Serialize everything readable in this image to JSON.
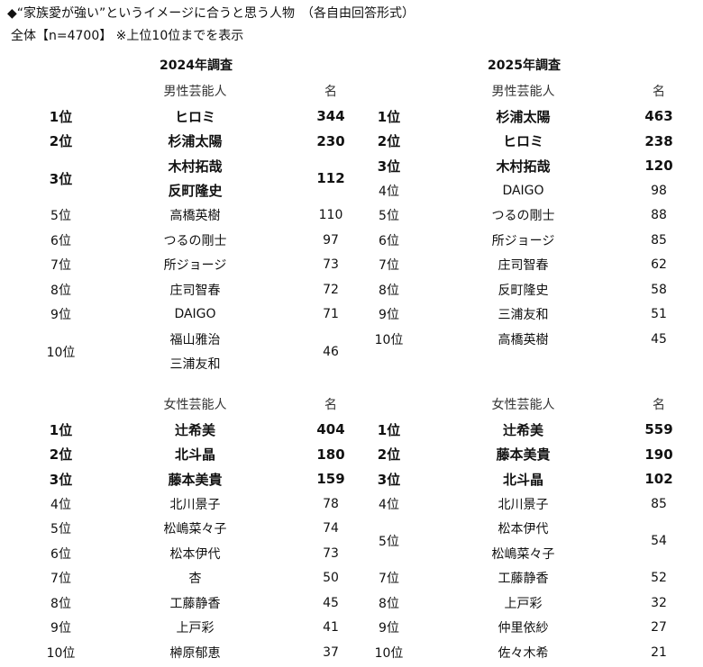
{
  "title": "◆“家族愛が強い”というイメージに合うと思う人物　（各自由回答形式）",
  "subtitle": "全体【n=4700】 ※上位10位までを表示",
  "years": {
    "left": "2024年調査",
    "right": "2025年調査"
  },
  "headers": {
    "male": "男性芸能人",
    "female": "女性芸能人",
    "count": "名"
  },
  "tables": {
    "m2024": [
      {
        "rank": "1位",
        "names": [
          "ヒロミ"
        ],
        "count": "344",
        "bold": true
      },
      {
        "rank": "2位",
        "names": [
          "杉浦太陽"
        ],
        "count": "230",
        "bold": true
      },
      {
        "rank": "3位",
        "names": [
          "木村拓哉",
          "反町隆史"
        ],
        "count": "112",
        "bold": true
      },
      {
        "rank": "5位",
        "names": [
          "高橋英樹"
        ],
        "count": "110"
      },
      {
        "rank": "6位",
        "names": [
          "つるの剛士"
        ],
        "count": "97"
      },
      {
        "rank": "7位",
        "names": [
          "所ジョージ"
        ],
        "count": "73"
      },
      {
        "rank": "8位",
        "names": [
          "庄司智春"
        ],
        "count": "72"
      },
      {
        "rank": "9位",
        "names": [
          "DAIGO"
        ],
        "count": "71"
      },
      {
        "rank": "10位",
        "names": [
          "福山雅治",
          "三浦友和"
        ],
        "count": "46"
      }
    ],
    "m2025": [
      {
        "rank": "1位",
        "names": [
          "杉浦太陽"
        ],
        "count": "463",
        "bold": true
      },
      {
        "rank": "2位",
        "names": [
          "ヒロミ"
        ],
        "count": "238",
        "bold": true
      },
      {
        "rank": "3位",
        "names": [
          "木村拓哉"
        ],
        "count": "120",
        "bold": true
      },
      {
        "rank": "4位",
        "names": [
          "DAIGO"
        ],
        "count": "98"
      },
      {
        "rank": "5位",
        "names": [
          "つるの剛士"
        ],
        "count": "88"
      },
      {
        "rank": "6位",
        "names": [
          "所ジョージ"
        ],
        "count": "85"
      },
      {
        "rank": "7位",
        "names": [
          "庄司智春"
        ],
        "count": "62"
      },
      {
        "rank": "8位",
        "names": [
          "反町隆史"
        ],
        "count": "58"
      },
      {
        "rank": "9位",
        "names": [
          "三浦友和"
        ],
        "count": "51"
      },
      {
        "rank": "10位",
        "names": [
          "高橋英樹"
        ],
        "count": "45"
      }
    ],
    "f2024": [
      {
        "rank": "1位",
        "names": [
          "辻希美"
        ],
        "count": "404",
        "bold": true
      },
      {
        "rank": "2位",
        "names": [
          "北斗晶"
        ],
        "count": "180",
        "bold": true
      },
      {
        "rank": "3位",
        "names": [
          "藤本美貴"
        ],
        "count": "159",
        "bold": true
      },
      {
        "rank": "4位",
        "names": [
          "北川景子"
        ],
        "count": "78"
      },
      {
        "rank": "5位",
        "names": [
          "松嶋菜々子"
        ],
        "count": "74"
      },
      {
        "rank": "6位",
        "names": [
          "松本伊代"
        ],
        "count": "73"
      },
      {
        "rank": "7位",
        "names": [
          "杏"
        ],
        "count": "50"
      },
      {
        "rank": "8位",
        "names": [
          "工藤静香"
        ],
        "count": "45"
      },
      {
        "rank": "9位",
        "names": [
          "上戸彩"
        ],
        "count": "41"
      },
      {
        "rank": "10位",
        "names": [
          "榊原郁恵"
        ],
        "count": "37"
      }
    ],
    "f2025": [
      {
        "rank": "1位",
        "names": [
          "辻希美"
        ],
        "count": "559",
        "bold": true
      },
      {
        "rank": "2位",
        "names": [
          "藤本美貴"
        ],
        "count": "190",
        "bold": true
      },
      {
        "rank": "3位",
        "names": [
          "北斗晶"
        ],
        "count": "102",
        "bold": true
      },
      {
        "rank": "4位",
        "names": [
          "北川景子"
        ],
        "count": "85"
      },
      {
        "rank": "5位",
        "names": [
          "松本伊代",
          "松嶋菜々子"
        ],
        "count": "54"
      },
      {
        "rank": "7位",
        "names": [
          "工藤静香"
        ],
        "count": "52"
      },
      {
        "rank": "8位",
        "names": [
          "上戸彩"
        ],
        "count": "32"
      },
      {
        "rank": "9位",
        "names": [
          "仲里依紗"
        ],
        "count": "27"
      },
      {
        "rank": "10位",
        "names": [
          "佐々木希"
        ],
        "count": "21"
      }
    ]
  },
  "colors": {
    "male_accent": "#9dccf5",
    "female_accent": "#ff9494"
  }
}
